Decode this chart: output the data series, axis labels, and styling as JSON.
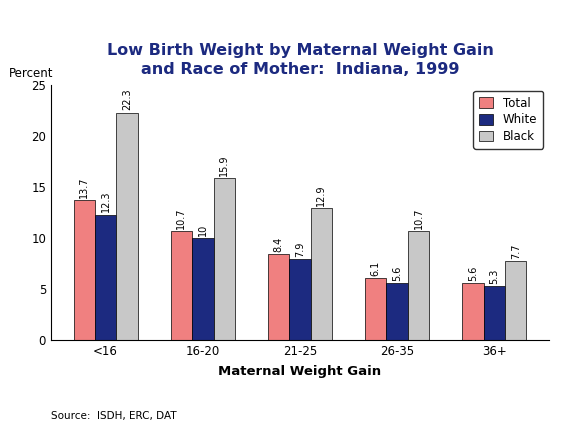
{
  "title": "Low Birth Weight by Maternal Weight Gain\nand Race of Mother:  Indiana, 1999",
  "xlabel": "Maternal Weight Gain",
  "ylabel": "Percent",
  "source": "Source:  ISDH, ERC, DAT",
  "categories": [
    "<16",
    "16-20",
    "21-25",
    "26-35",
    "36+"
  ],
  "total": [
    13.7,
    10.7,
    8.4,
    6.1,
    5.6
  ],
  "white": [
    12.3,
    10.0,
    7.9,
    5.6,
    5.3
  ],
  "black": [
    22.3,
    15.9,
    12.9,
    10.7,
    7.7
  ],
  "color_total": "#F08080",
  "color_white": "#1C2A80",
  "color_black": "#C8C8C8",
  "ylim": [
    0,
    25
  ],
  "yticks": [
    0,
    5,
    10,
    15,
    20,
    25
  ],
  "legend_labels": [
    "Total",
    "White",
    "Black"
  ],
  "bar_width": 0.22,
  "title_color": "#1C2A80",
  "title_fontsize": 11.5,
  "label_fontsize": 8.5,
  "tick_fontsize": 8.5,
  "annotation_fontsize": 7,
  "xlabel_fontsize": 9.5,
  "source_fontsize": 7.5
}
